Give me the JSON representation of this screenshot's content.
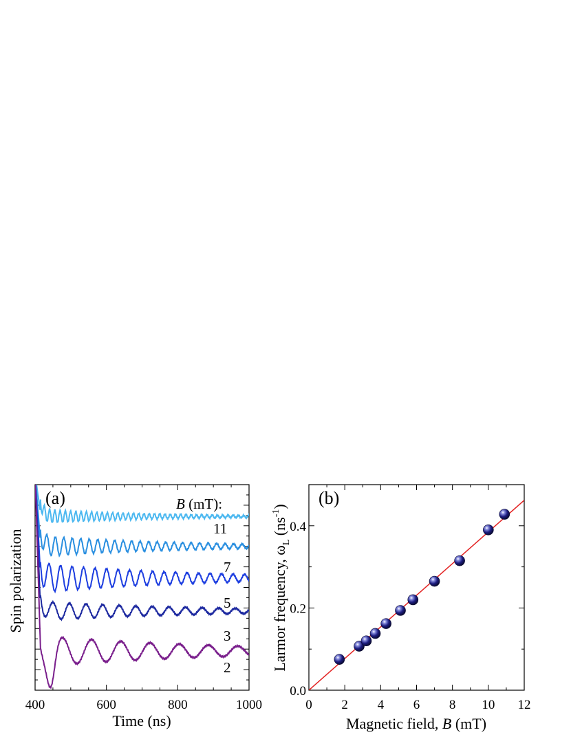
{
  "chart_data": [
    {
      "panel": "(a)",
      "type": "line",
      "xlabel": "Time (ns)",
      "ylabel": "Spin polarization",
      "xlim": [
        400,
        1000
      ],
      "xticks": [
        "400",
        "600",
        "800",
        "1000"
      ],
      "legend_title": "B (mT):",
      "legend_title_italic": "B",
      "legend_title_rest": " (mT):",
      "series": [
        {
          "name": "11",
          "color": "#4cb8f0",
          "offset": 0.845,
          "frequency_per_ns": 0.068,
          "amplitude": 0.034,
          "decay_ns": 320
        },
        {
          "name": "7",
          "color": "#2a8fe0",
          "offset": 0.7,
          "frequency_per_ns": 0.042,
          "amplitude": 0.05,
          "decay_ns": 380
        },
        {
          "name": "5",
          "color": "#1d3ee0",
          "offset": 0.545,
          "frequency_per_ns": 0.031,
          "amplitude": 0.07,
          "decay_ns": 420
        },
        {
          "name": "3",
          "color": "#1e2aa0",
          "offset": 0.385,
          "frequency_per_ns": 0.0215,
          "amplitude": 0.045,
          "decay_ns": 450
        },
        {
          "name": "2",
          "color": "#7a1f8c",
          "offset": 0.19,
          "frequency_per_ns": 0.0122,
          "amplitude": 0.075,
          "decay_ns": 500
        }
      ]
    },
    {
      "panel": "(b)",
      "type": "scatter",
      "xlabel": "Magnetic field, B (mT)",
      "xlabel_parts": {
        "pre": "Magnetic field, ",
        "italic": "B",
        "post": " (mT)"
      },
      "ylabel": "Larmor frequency, ωL (ns-1)",
      "ylabel_parts": {
        "pre": "Larmor frequency, ω",
        "sub": "L",
        "mid": " (ns",
        "sup": "-1",
        "post": ")"
      },
      "xlim": [
        0,
        12
      ],
      "ylim": [
        0,
        0.5
      ],
      "xticks": [
        "0",
        "2",
        "4",
        "6",
        "8",
        "10",
        "12"
      ],
      "yticks": [
        "0.0",
        "0.2",
        "0.4"
      ],
      "points": [
        {
          "x": 1.7,
          "y": 0.075
        },
        {
          "x": 2.8,
          "y": 0.107
        },
        {
          "x": 3.2,
          "y": 0.12
        },
        {
          "x": 3.7,
          "y": 0.138
        },
        {
          "x": 4.3,
          "y": 0.162
        },
        {
          "x": 5.1,
          "y": 0.194
        },
        {
          "x": 5.8,
          "y": 0.22
        },
        {
          "x": 7.0,
          "y": 0.265
        },
        {
          "x": 8.4,
          "y": 0.315
        },
        {
          "x": 10.0,
          "y": 0.39
        },
        {
          "x": 10.9,
          "y": 0.428
        }
      ],
      "fit": {
        "slope": 0.0385,
        "intercept": 0.0,
        "color": "#e32222"
      },
      "marker_color": "#1a1a7a"
    }
  ]
}
